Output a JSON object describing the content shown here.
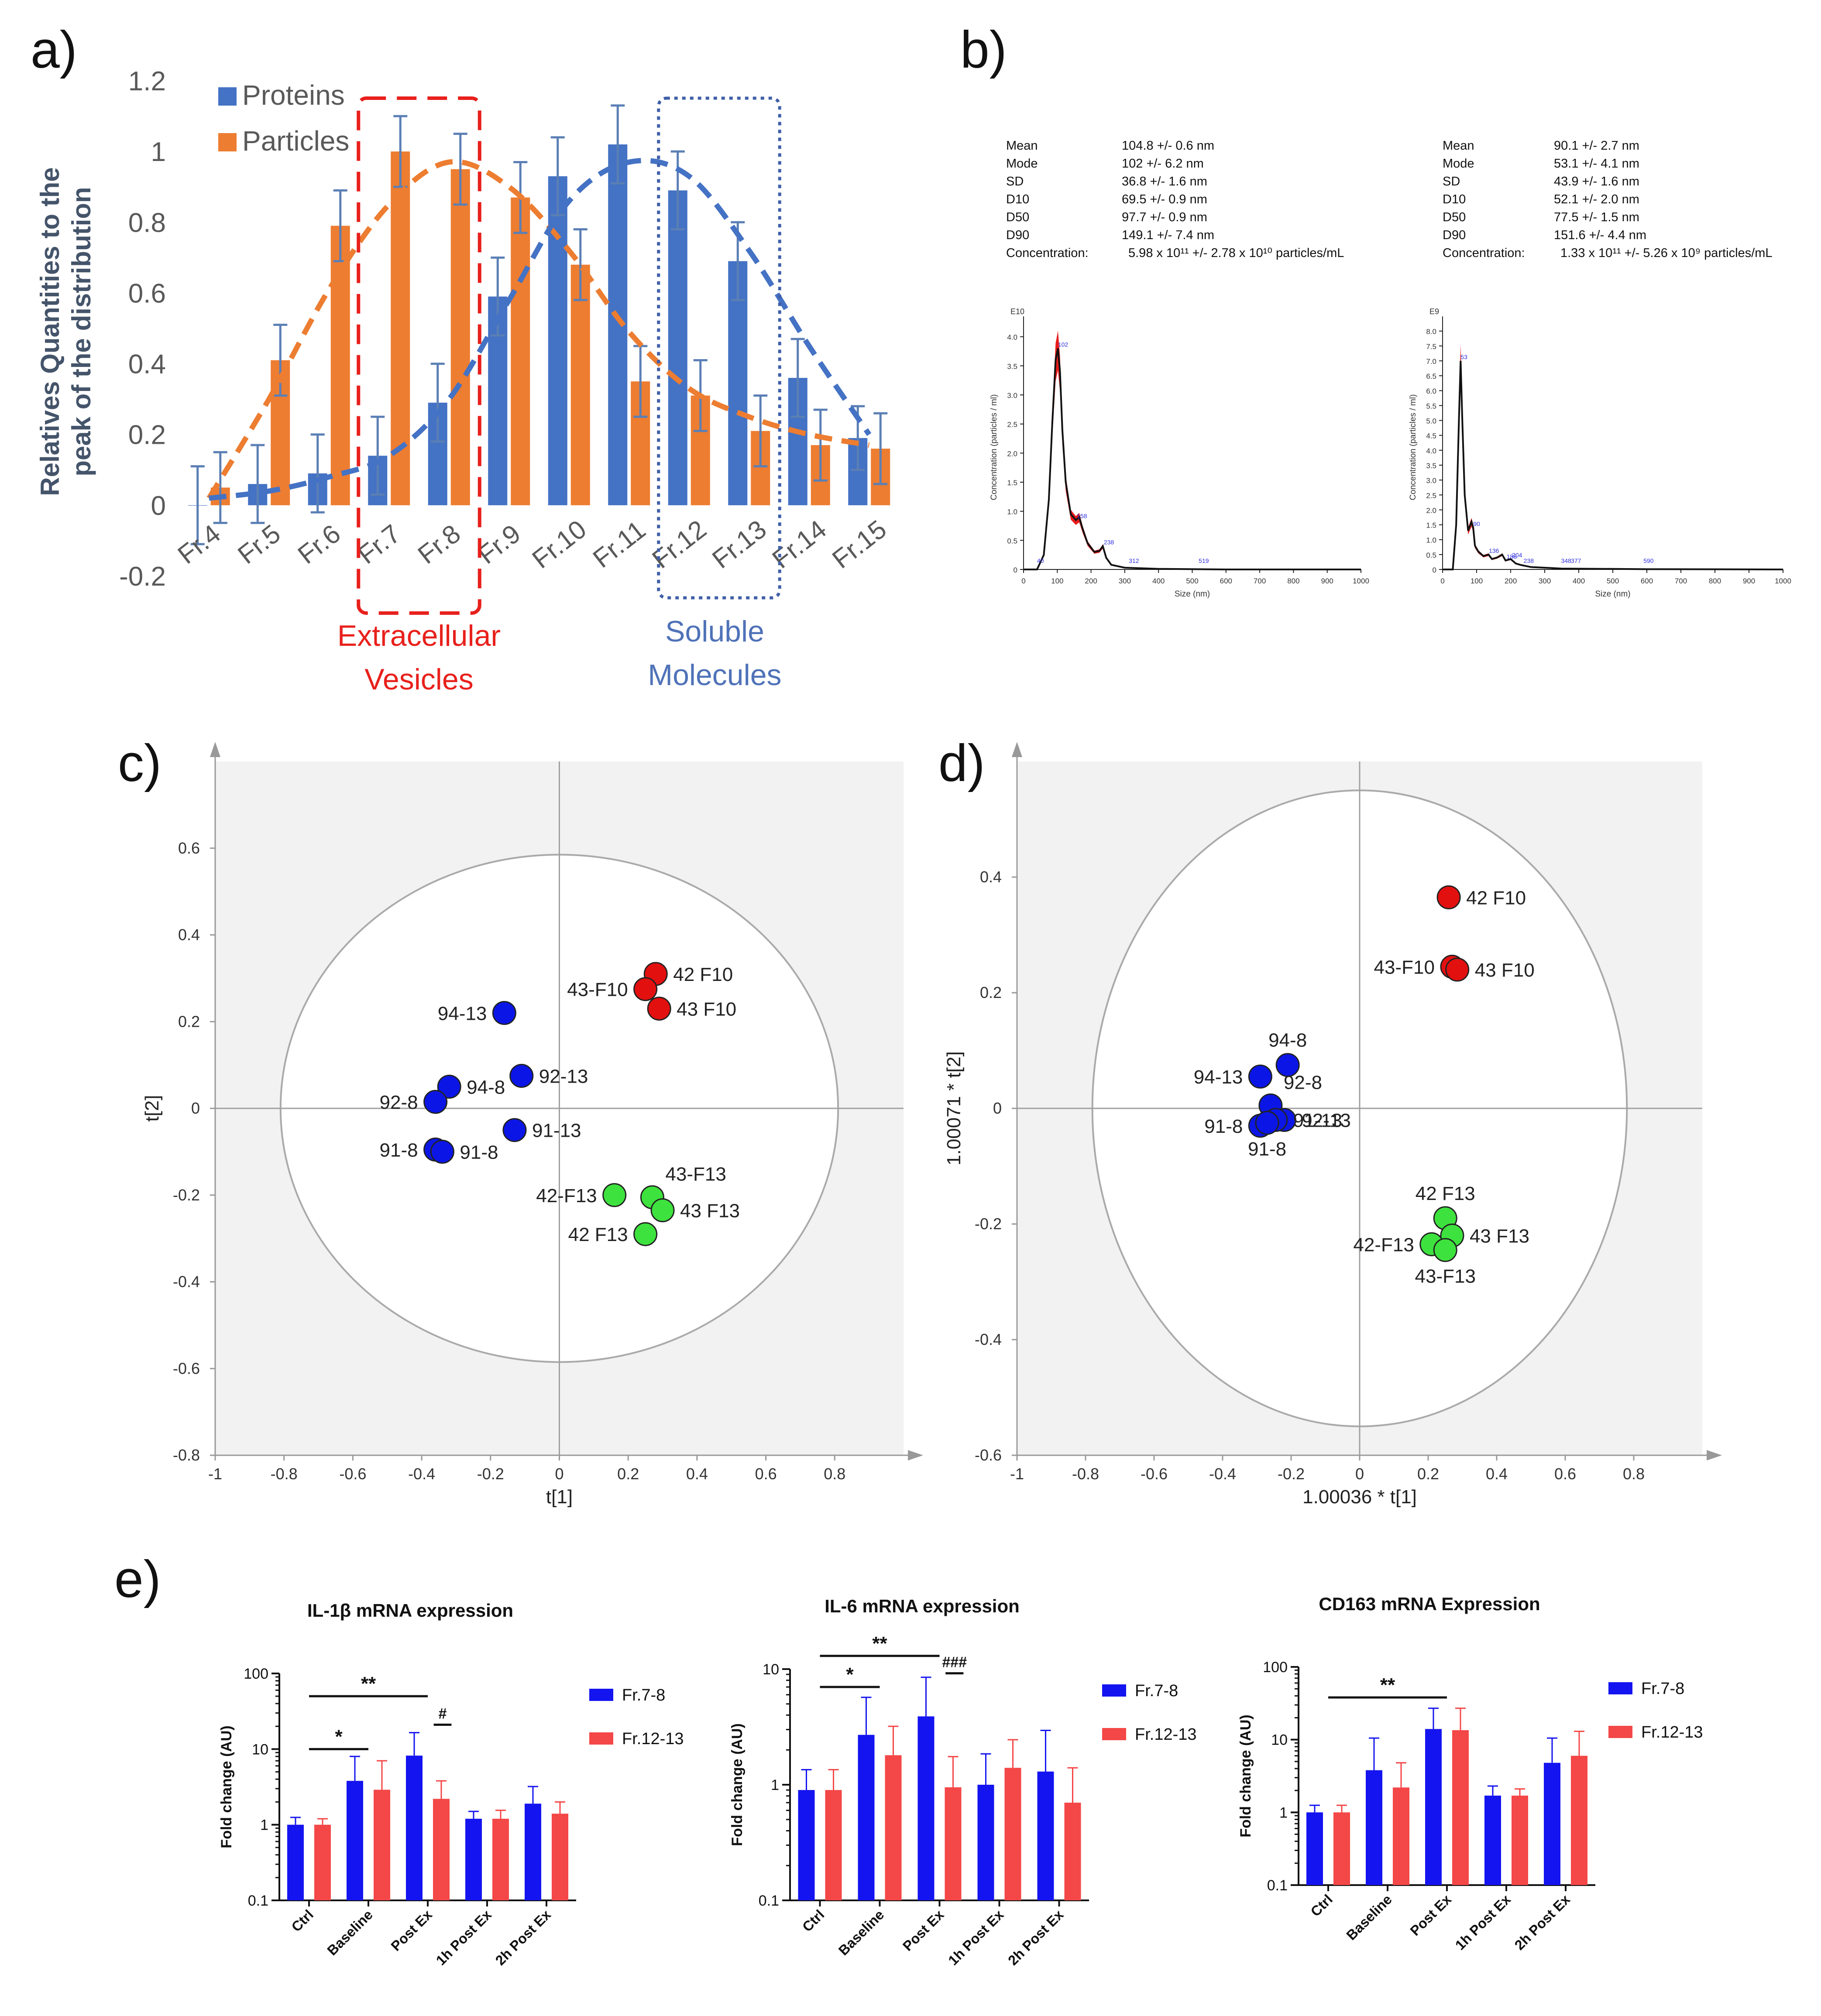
{
  "figure": {
    "panel_labels": [
      "a)",
      "b)",
      "c)",
      "d)",
      "e)"
    ]
  },
  "colors": {
    "proteins": "#4472c4",
    "particles": "#ed7d31",
    "ev_box": "#e8201c",
    "soluble_box": "#3f5fa8",
    "blue_dot": "#0b16e6",
    "red_dot": "#e31010",
    "green_dot": "#3ee23e",
    "bar_blue": "#1414f0",
    "bar_red": "#f44747"
  },
  "chart_data": [
    {
      "id": "a",
      "type": "bar",
      "ylabel": "Relatives Quantities to the peak of  the distribution",
      "ylabel_lines": [
        "Relatives Quantities to the",
        "peak of  the distribution"
      ],
      "ylim": [
        -0.2,
        1.2
      ],
      "yticks": [
        -0.2,
        0,
        0.2,
        0.4,
        0.6,
        0.8,
        1,
        1.2
      ],
      "categories": [
        "Fr.4",
        "Fr.5",
        "Fr.6",
        "Fr.7",
        "Fr.8",
        "Fr.9",
        "Fr.10",
        "Fr.11",
        "Fr.12",
        "Fr.13",
        "Fr.14",
        "Fr.15"
      ],
      "series": [
        {
          "name": "Proteins",
          "values": [
            0.0,
            0.06,
            0.09,
            0.14,
            0.29,
            0.59,
            0.93,
            1.02,
            0.89,
            0.69,
            0.36,
            0.19
          ],
          "errors": [
            0.11,
            0.11,
            0.11,
            0.11,
            0.11,
            0.11,
            0.11,
            0.11,
            0.11,
            0.11,
            0.11,
            0.09
          ]
        },
        {
          "name": "Particles",
          "values": [
            0.05,
            0.41,
            0.79,
            1.0,
            0.95,
            0.87,
            0.68,
            0.35,
            0.31,
            0.21,
            0.17,
            0.16
          ],
          "errors": [
            0.1,
            0.1,
            0.1,
            0.1,
            0.1,
            0.1,
            0.1,
            0.1,
            0.1,
            0.1,
            0.1,
            0.1
          ]
        }
      ],
      "trend_lines": {
        "Particles": [
          0.02,
          0.3,
          0.61,
          0.85,
          0.97,
          0.9,
          0.72,
          0.49,
          0.33,
          0.25,
          0.2,
          0.17
        ],
        "Proteins": [
          0.02,
          0.04,
          0.08,
          0.14,
          0.3,
          0.58,
          0.86,
          0.97,
          0.93,
          0.72,
          0.45,
          0.2
        ]
      },
      "annotations": [
        "Extracellular",
        "Vesicles",
        "Soluble",
        "Molecules"
      ]
    },
    {
      "id": "b",
      "type": "line",
      "stats": [
        {
          "rows": [
            [
              "Mean",
              "104.8 +/- 0.6 nm"
            ],
            [
              "Mode",
              "102 +/- 6.2 nm"
            ],
            [
              "SD",
              "36.8 +/- 1.6 nm"
            ],
            [
              "D10",
              "69.5 +/- 0.9 nm"
            ],
            [
              "D50",
              "97.7 +/- 0.9 nm"
            ],
            [
              "D90",
              "149.1 +/- 7.4 nm"
            ],
            [
              "Concentration:",
              "5.98 x 10¹¹ +/- 2.78 x 10¹⁰ particles/mL"
            ]
          ]
        },
        {
          "rows": [
            [
              "Mean",
              "90.1 +/- 2.7 nm"
            ],
            [
              "Mode",
              "53.1 +/- 4.1 nm"
            ],
            [
              "SD",
              "43.9 +/- 1.6 nm"
            ],
            [
              "D10",
              "52.1 +/- 2.0 nm"
            ],
            [
              "D50",
              "77.5 +/- 1.5 nm"
            ],
            [
              "D90",
              "151.6 +/- 4.4 nm"
            ],
            [
              "Concentration:",
              "1.33 x 10¹¹ +/- 5.26 x 10⁹ particles/mL"
            ]
          ]
        }
      ],
      "plots": [
        {
          "scale_label": "E10",
          "xlabel": "Size (nm)",
          "ylabel": "Concentration (particles / ml)",
          "xlim": [
            0,
            1000
          ],
          "ylim": [
            0,
            4.2
          ],
          "xticks": [
            0,
            100,
            200,
            300,
            400,
            500,
            600,
            700,
            800,
            900,
            1000
          ],
          "yticks": [
            "0",
            "0.5",
            "1.0",
            "1.5",
            "2.0",
            "2.5",
            "3.0",
            "3.5",
            "4.0"
          ],
          "x": [
            0,
            40,
            60,
            75,
            85,
            95,
            102,
            108,
            115,
            125,
            140,
            155,
            165,
            175,
            190,
            210,
            225,
            235,
            245,
            260,
            300,
            400,
            600,
            1000
          ],
          "y": [
            0,
            0,
            0.25,
            1.2,
            2.5,
            3.6,
            3.8,
            3.4,
            2.4,
            1.5,
            0.95,
            0.85,
            0.9,
            0.7,
            0.45,
            0.3,
            0.32,
            0.4,
            0.2,
            0.08,
            0.03,
            0.01,
            0,
            0
          ],
          "peak_labels": [
            {
              "x": 40,
              "text": "40"
            },
            {
              "x": 102,
              "text": "102"
            },
            {
              "x": 158,
              "text": "158"
            },
            {
              "x": 238,
              "text": "238"
            },
            {
              "x": 312,
              "text": "312"
            },
            {
              "x": 519,
              "text": "519"
            }
          ]
        },
        {
          "scale_label": "E9",
          "xlabel": "Size (nm)",
          "ylabel": "Concentration (particles / ml)",
          "xlim": [
            0,
            1000
          ],
          "ylim": [
            0,
            8.2
          ],
          "xticks": [
            0,
            100,
            200,
            300,
            400,
            500,
            600,
            700,
            800,
            900,
            1000
          ],
          "yticks": [
            "0",
            "0.5",
            "1.0",
            "1.5",
            "2.0",
            "2.5",
            "3.0",
            "3.5",
            "4.0",
            "4.5",
            "5.0",
            "5.5",
            "6.0",
            "6.5",
            "7.0",
            "7.5",
            "8.0"
          ],
          "x": [
            0,
            30,
            40,
            48,
            53,
            58,
            65,
            75,
            85,
            90,
            95,
            105,
            120,
            135,
            145,
            160,
            175,
            185,
            200,
            215,
            230,
            260,
            350,
            600,
            1000
          ],
          "y": [
            0,
            0,
            1.5,
            5.0,
            7.0,
            5.0,
            2.5,
            1.3,
            1.6,
            1.4,
            0.8,
            0.6,
            0.45,
            0.5,
            0.35,
            0.4,
            0.5,
            0.3,
            0.35,
            0.2,
            0.15,
            0.08,
            0.03,
            0.01,
            0
          ],
          "peak_labels": [
            {
              "x": 53,
              "text": "53"
            },
            {
              "x": 90,
              "text": "90"
            },
            {
              "x": 136,
              "text": "136"
            },
            {
              "x": 188,
              "text": "188"
            },
            {
              "x": 204,
              "text": "204"
            },
            {
              "x": 238,
              "text": "238"
            },
            {
              "x": 348,
              "text": "348"
            },
            {
              "x": 377,
              "text": "377"
            },
            {
              "x": 590,
              "text": "590"
            }
          ]
        }
      ]
    },
    {
      "id": "c",
      "type": "scatter",
      "xlabel": "t[1]",
      "ylabel": "t[2]",
      "xlim": [
        -1,
        1
      ],
      "ylim": [
        -0.8,
        0.8
      ],
      "xticks": [
        "-1",
        "-0.8",
        "-0.6",
        "-0.4",
        "-0.2",
        "0",
        "0.2",
        "0.4",
        "0.6",
        "0.8"
      ],
      "yticks": [
        "-0.8",
        "-0.6",
        "-0.4",
        "-0.2",
        "0",
        "0.2",
        "0.4",
        "0.6"
      ],
      "ellipse": {
        "rx": 0.81,
        "ry": 0.585
      },
      "points": [
        {
          "x": 0.28,
          "y": 0.31,
          "color": "red",
          "label": "42 F10",
          "pos": "right"
        },
        {
          "x": 0.25,
          "y": 0.275,
          "color": "red",
          "label": "43-F10",
          "pos": "left"
        },
        {
          "x": 0.29,
          "y": 0.23,
          "color": "red",
          "label": "43 F10",
          "pos": "right"
        },
        {
          "x": -0.16,
          "y": 0.22,
          "color": "blue",
          "label": "94-13",
          "pos": "left"
        },
        {
          "x": -0.11,
          "y": 0.075,
          "color": "blue",
          "label": "92-13",
          "pos": "right"
        },
        {
          "x": -0.32,
          "y": 0.05,
          "color": "blue",
          "label": "94-8",
          "pos": "right"
        },
        {
          "x": -0.36,
          "y": 0.015,
          "color": "blue",
          "label": "92-8",
          "pos": "left"
        },
        {
          "x": -0.13,
          "y": -0.05,
          "color": "blue",
          "label": "91-13",
          "pos": "right"
        },
        {
          "x": -0.36,
          "y": -0.095,
          "color": "blue",
          "label": "91-8",
          "pos": "left"
        },
        {
          "x": -0.34,
          "y": -0.1,
          "color": "blue",
          "label": "91-8",
          "pos": "right"
        },
        {
          "x": 0.16,
          "y": -0.2,
          "color": "green",
          "label": "42-F13",
          "pos": "left"
        },
        {
          "x": 0.27,
          "y": -0.205,
          "color": "green",
          "label": "43-F13",
          "pos": "upright"
        },
        {
          "x": 0.3,
          "y": -0.235,
          "color": "green",
          "label": "43 F13",
          "pos": "right"
        },
        {
          "x": 0.25,
          "y": -0.29,
          "color": "green",
          "label": "42 F13",
          "pos": "left"
        }
      ]
    },
    {
      "id": "d",
      "type": "scatter",
      "xlabel": "1.00036 * t[1]",
      "ylabel": "1.00071 * t[2]",
      "xlim": [
        -1,
        1
      ],
      "ylim": [
        -0.6,
        0.6
      ],
      "xticks": [
        "-1",
        "-0.8",
        "-0.6",
        "-0.4",
        "-0.2",
        "0",
        "0.2",
        "0.4",
        "0.6",
        "0.8"
      ],
      "yticks": [
        "-0.6",
        "-0.4",
        "-0.2",
        "0",
        "0.2",
        "0.4"
      ],
      "ellipse": {
        "rx": 0.78,
        "ry": 0.55
      },
      "points": [
        {
          "x": 0.26,
          "y": 0.365,
          "color": "red",
          "label": "42 F10",
          "pos": "right"
        },
        {
          "x": 0.27,
          "y": 0.245,
          "color": "red",
          "label": "43-F10",
          "pos": "left"
        },
        {
          "x": 0.285,
          "y": 0.24,
          "color": "red",
          "label": "43 F10",
          "pos": "right"
        },
        {
          "x": -0.21,
          "y": 0.075,
          "color": "blue",
          "label": "94-8",
          "pos": "up"
        },
        {
          "x": -0.29,
          "y": 0.055,
          "color": "blue",
          "label": "94-13",
          "pos": "left"
        },
        {
          "x": -0.26,
          "y": 0.005,
          "color": "blue",
          "label": "92-8",
          "pos": "upright"
        },
        {
          "x": -0.22,
          "y": -0.02,
          "color": "blue",
          "label": "92-13",
          "pos": "right"
        },
        {
          "x": -0.245,
          "y": -0.02,
          "color": "blue",
          "label": "91-13",
          "pos": "right"
        },
        {
          "x": -0.29,
          "y": -0.03,
          "color": "blue",
          "label": "91-8",
          "pos": "left"
        },
        {
          "x": -0.27,
          "y": -0.025,
          "color": "blue",
          "label": "91-8",
          "pos": "down"
        },
        {
          "x": 0.25,
          "y": -0.19,
          "color": "green",
          "label": "42 F13",
          "pos": "up"
        },
        {
          "x": 0.27,
          "y": -0.22,
          "color": "green",
          "label": "43 F13",
          "pos": "right"
        },
        {
          "x": 0.21,
          "y": -0.235,
          "color": "green",
          "label": "42-F13",
          "pos": "left"
        },
        {
          "x": 0.25,
          "y": -0.245,
          "color": "green",
          "label": "43-F13",
          "pos": "down"
        }
      ]
    },
    {
      "id": "e1",
      "type": "bar",
      "title": "IL-1β mRNA expression",
      "ylabel": "Fold change (AU)",
      "yscale": "log",
      "ylim": [
        0.1,
        100
      ],
      "yticks": [
        "0.1",
        "1",
        "10",
        "100"
      ],
      "categories": [
        "Ctrl",
        "Baseline",
        "Post Ex",
        "1h Post Ex",
        "2h Post Ex"
      ],
      "series": [
        {
          "name": "Fr.7-8",
          "values": [
            1.0,
            3.8,
            8.2,
            1.2,
            1.9
          ],
          "errors": [
            1.25,
            8.0,
            16.5,
            1.5,
            3.2
          ]
        },
        {
          "name": "Fr.12-13",
          "values": [
            1.0,
            2.9,
            2.2,
            1.2,
            1.4
          ],
          "errors": [
            1.2,
            7.0,
            3.8,
            1.55,
            2.0
          ]
        }
      ],
      "significance": [
        {
          "from": 0,
          "to": 2,
          "level": 50,
          "label": "**"
        },
        {
          "from": 0,
          "to": 1,
          "level": 10,
          "label": "*"
        },
        {
          "from": 2.1,
          "to": 2.4,
          "level": 21,
          "label": "#"
        }
      ]
    },
    {
      "id": "e2",
      "type": "bar",
      "title": "IL-6 mRNA expression",
      "ylabel": "Fold change (AU)",
      "yscale": "log",
      "ylim": [
        0.1,
        10
      ],
      "yticks": [
        "0.1",
        "1",
        "10"
      ],
      "categories": [
        "Ctrl",
        "Baseline",
        "Post Ex",
        "1h Post Ex",
        "2h Post Ex"
      ],
      "series": [
        {
          "name": "Fr.7-8",
          "values": [
            0.9,
            2.7,
            3.9,
            1.0,
            1.3
          ],
          "errors": [
            1.35,
            5.7,
            8.5,
            1.85,
            2.95
          ]
        },
        {
          "name": "Fr.12-13",
          "values": [
            0.9,
            1.8,
            0.95,
            1.4,
            0.7
          ],
          "errors": [
            1.35,
            3.2,
            1.75,
            2.45,
            1.4
          ]
        }
      ],
      "significance": [
        {
          "from": 0,
          "to": 2,
          "level": 13,
          "label": "**"
        },
        {
          "from": 0,
          "to": 1,
          "level": 7.0,
          "label": "*"
        },
        {
          "from": 2.1,
          "to": 2.4,
          "level": 9.2,
          "label": "###"
        }
      ]
    },
    {
      "id": "e3",
      "type": "bar",
      "title": "CD163 mRNA Expression",
      "ylabel": "Fold change (AU)",
      "yscale": "log",
      "ylim": [
        0.1,
        100
      ],
      "yticks": [
        "0.1",
        "1",
        "10",
        "100"
      ],
      "categories": [
        "Ctrl",
        "Baseline",
        "Post Ex",
        "1h Post Ex",
        "2h Post Ex"
      ],
      "series": [
        {
          "name": "Fr.7-8",
          "values": [
            1.0,
            3.8,
            14,
            1.7,
            4.8
          ],
          "errors": [
            1.25,
            10.5,
            27,
            2.3,
            10.5
          ]
        },
        {
          "name": "Fr.12-13",
          "values": [
            1.0,
            2.2,
            13.5,
            1.7,
            6.0
          ],
          "errors": [
            1.25,
            4.8,
            27,
            2.1,
            13
          ]
        }
      ],
      "significance": [
        {
          "from": 0,
          "to": 2,
          "level": 38,
          "label": "**"
        }
      ]
    }
  ]
}
